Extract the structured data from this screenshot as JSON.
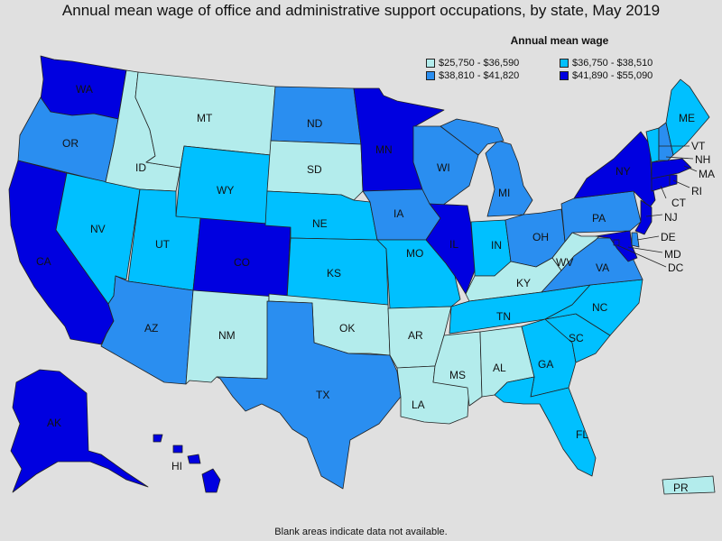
{
  "title": "Annual mean wage of office and administrative support occupations, by state, May 2019",
  "legend": {
    "title": "Annual mean wage",
    "bins": [
      {
        "label": "$25,750 - $36,590",
        "color": "#b3ecec"
      },
      {
        "label": "$36,750 - $38,510",
        "color": "#00c0ff"
      },
      {
        "label": "$38,810 - $41,820",
        "color": "#2a8ef0"
      },
      {
        "label": "$41,890 - $55,090",
        "color": "#0000e0"
      }
    ]
  },
  "footnote": "Blank areas indicate data not available.",
  "states": {
    "WA": 3,
    "OR": 2,
    "CA": 3,
    "NV": 1,
    "ID": 0,
    "MT": 0,
    "WY": 1,
    "UT": 1,
    "AZ": 2,
    "NM": 0,
    "CO": 3,
    "ND": 2,
    "SD": 0,
    "NE": 1,
    "KS": 1,
    "OK": 0,
    "TX": 2,
    "MN": 3,
    "IA": 2,
    "MO": 1,
    "AR": 0,
    "LA": 0,
    "WI": 2,
    "IL": 3,
    "MI": 2,
    "IN": 1,
    "OH": 2,
    "KY": 0,
    "TN": 1,
    "MS": 0,
    "AL": 0,
    "GA": 1,
    "FL": 1,
    "SC": 1,
    "NC": 1,
    "VA": 2,
    "WV": 0,
    "PA": 2,
    "NY": 3,
    "VT": 1,
    "NH": 2,
    "ME": 1,
    "MA": 3,
    "RI": 3,
    "CT": 3,
    "NJ": 3,
    "DE": 2,
    "MD": 3,
    "DC": 3,
    "AK": 3,
    "HI": 3,
    "PR": 0
  }
}
